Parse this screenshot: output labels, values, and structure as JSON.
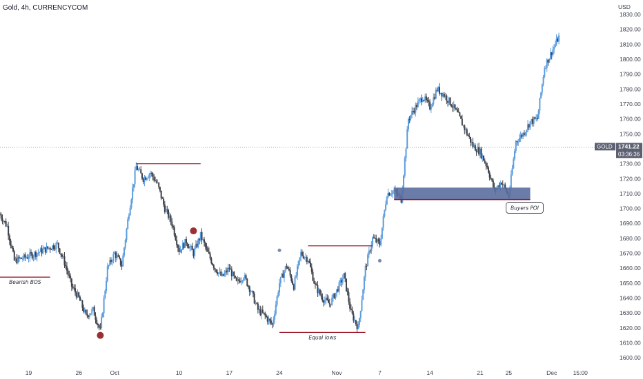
{
  "header": {
    "title": "Gold, 4h, CURRENCYCOM",
    "currency": "USD"
  },
  "colors": {
    "up": "#5b9cde",
    "down": "#3d4048",
    "annotation": "#9b1c2e",
    "poi_zone": "#5b6e9e",
    "marker": "#9b2f36",
    "marker_grey": "#7b8aa8",
    "price_line": "#5c6378",
    "price_label_bg": "#5c6070"
  },
  "price_label": {
    "symbol": "GOLD",
    "price": "1741.22",
    "countdown": "03:36:36"
  },
  "chart_data": {
    "type": "line",
    "ylim": [
      1595,
      1836
    ],
    "yticks": [
      1600,
      1610,
      1620,
      1630,
      1640,
      1650,
      1660,
      1670,
      1680,
      1690,
      1700,
      1710,
      1720,
      1730,
      1740,
      1750,
      1760,
      1770,
      1780,
      1790,
      1800,
      1810,
      1820,
      1830
    ],
    "ytick_labels": [
      "1600.00",
      "1610.00",
      "1620.00",
      "1630.00",
      "1640.00",
      "1650.00",
      "1660.00",
      "1670.00",
      "1680.00",
      "1690.00",
      "1700.00",
      "1710.00",
      "1720.00",
      "1730.00",
      "1740.00",
      "1750.00",
      "1760.00",
      "1770.00",
      "1780.00",
      "1790.00",
      "1800.00",
      "1810.00",
      "1820.00",
      "1830.00"
    ],
    "xlim": [
      "2021-09-15",
      "2021-12-07"
    ],
    "xticks": [
      {
        "date": "2021-09-19",
        "label": "19"
      },
      {
        "date": "2021-09-26",
        "label": "26"
      },
      {
        "date": "2021-10-01",
        "label": "Oct"
      },
      {
        "date": "2021-10-10",
        "label": "10"
      },
      {
        "date": "2021-10-17",
        "label": "17"
      },
      {
        "date": "2021-10-24",
        "label": "24"
      },
      {
        "date": "2021-11-01",
        "label": "Nov"
      },
      {
        "date": "2021-11-07",
        "label": "7"
      },
      {
        "date": "2021-11-14",
        "label": "14"
      },
      {
        "date": "2021-11-21",
        "label": "21"
      },
      {
        "date": "2021-11-25",
        "label": "25"
      },
      {
        "date": "2021-12-01",
        "label": "Dec"
      },
      {
        "date": "2021-12-05",
        "label": "15:00"
      }
    ],
    "series": [
      {
        "points": [
          [
            "2021-09-15",
            1696
          ],
          [
            "2021-09-16",
            1688
          ],
          [
            "2021-09-17",
            1665
          ],
          [
            "2021-09-19",
            1668
          ],
          [
            "2021-09-21",
            1672
          ],
          [
            "2021-09-23",
            1676
          ],
          [
            "2021-09-24",
            1664
          ],
          [
            "2021-09-25",
            1648
          ],
          [
            "2021-09-26",
            1640
          ],
          [
            "2021-09-27",
            1628
          ],
          [
            "2021-09-28",
            1632
          ],
          [
            "2021-09-29",
            1618
          ],
          [
            "2021-09-30",
            1660
          ],
          [
            "2021-10-01",
            1670
          ],
          [
            "2021-10-02",
            1662
          ],
          [
            "2021-10-03",
            1698
          ],
          [
            "2021-10-04",
            1728
          ],
          [
            "2021-10-05",
            1720
          ],
          [
            "2021-10-06",
            1724
          ],
          [
            "2021-10-07",
            1716
          ],
          [
            "2021-10-08",
            1700
          ],
          [
            "2021-10-09",
            1690
          ],
          [
            "2021-10-10",
            1672
          ],
          [
            "2021-10-11",
            1678
          ],
          [
            "2021-10-12",
            1670
          ],
          [
            "2021-10-13",
            1682
          ],
          [
            "2021-10-14",
            1670
          ],
          [
            "2021-10-15",
            1660
          ],
          [
            "2021-10-16",
            1654
          ],
          [
            "2021-10-17",
            1660
          ],
          [
            "2021-10-18",
            1650
          ],
          [
            "2021-10-19",
            1655
          ],
          [
            "2021-10-20",
            1645
          ],
          [
            "2021-10-21",
            1632
          ],
          [
            "2021-10-22",
            1628
          ],
          [
            "2021-10-23",
            1622
          ],
          [
            "2021-10-24",
            1650
          ],
          [
            "2021-10-25",
            1662
          ],
          [
            "2021-10-26",
            1648
          ],
          [
            "2021-10-27",
            1670
          ],
          [
            "2021-10-28",
            1666
          ],
          [
            "2021-10-29",
            1648
          ],
          [
            "2021-10-30",
            1640
          ],
          [
            "2021-10-31",
            1636
          ],
          [
            "2021-11-01",
            1645
          ],
          [
            "2021-11-02",
            1655
          ],
          [
            "2021-11-03",
            1630
          ],
          [
            "2021-11-04",
            1620
          ],
          [
            "2021-11-05",
            1660
          ],
          [
            "2021-11-06",
            1680
          ],
          [
            "2021-11-07",
            1676
          ],
          [
            "2021-11-08",
            1710
          ],
          [
            "2021-11-09",
            1712
          ],
          [
            "2021-11-10",
            1706
          ],
          [
            "2021-11-11",
            1760
          ],
          [
            "2021-11-12",
            1768
          ],
          [
            "2021-11-13",
            1775
          ],
          [
            "2021-11-14",
            1768
          ],
          [
            "2021-11-15",
            1780
          ],
          [
            "2021-11-16",
            1776
          ],
          [
            "2021-11-17",
            1770
          ],
          [
            "2021-11-18",
            1762
          ],
          [
            "2021-11-19",
            1752
          ],
          [
            "2021-11-20",
            1742
          ],
          [
            "2021-11-21",
            1738
          ],
          [
            "2021-11-22",
            1728
          ],
          [
            "2021-11-23",
            1712
          ],
          [
            "2021-11-24",
            1718
          ],
          [
            "2021-11-25",
            1708
          ],
          [
            "2021-11-26",
            1745
          ],
          [
            "2021-11-27",
            1750
          ],
          [
            "2021-11-28",
            1758
          ],
          [
            "2021-11-29",
            1760
          ],
          [
            "2021-11-30",
            1795
          ],
          [
            "2021-12-01",
            1805
          ],
          [
            "2021-12-02",
            1815
          ]
        ]
      }
    ],
    "annotations": [
      {
        "label": "Bearish BOS",
        "level": 1654,
        "from": "2021-09-15",
        "to": "2021-09-22"
      },
      {
        "label": "",
        "level": 1730,
        "from": "2021-10-04",
        "to": "2021-10-13"
      },
      {
        "label": "",
        "level": 1675,
        "from": "2021-10-28",
        "to": "2021-11-06"
      },
      {
        "label": "Equal lows",
        "level": 1617,
        "from": "2021-10-24",
        "to": "2021-11-05"
      },
      {
        "label": "Buyers POI",
        "zone": [
          1706,
          1714
        ],
        "from": "2021-11-09",
        "to": "2021-11-28"
      }
    ],
    "current_price": 1741.22
  }
}
